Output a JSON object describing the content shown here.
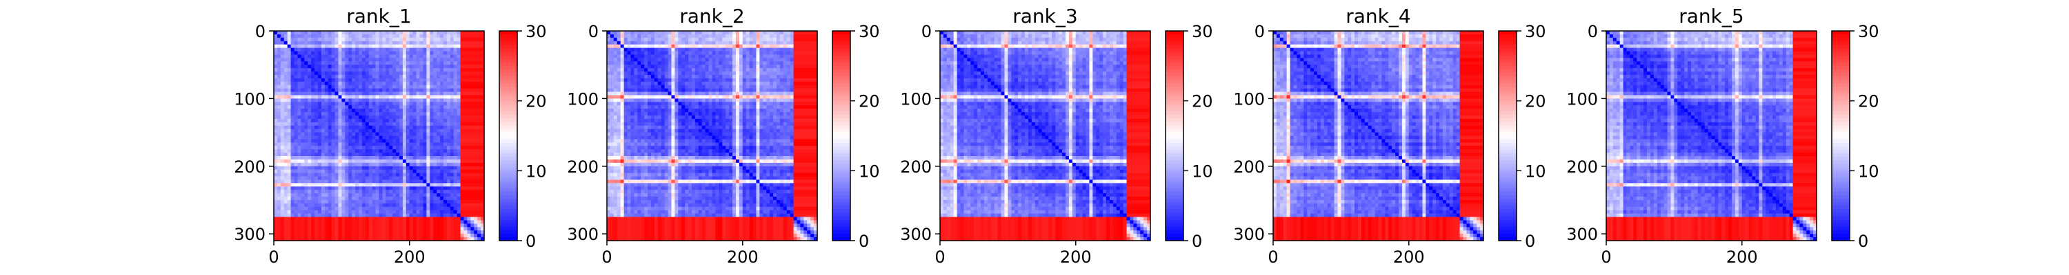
{
  "chart_data": [
    {
      "type": "heatmap",
      "title": "rank_1",
      "xlabel": "",
      "ylabel": "",
      "xlim": [
        0,
        310
      ],
      "ylim": [
        310,
        0
      ],
      "x_ticks": [
        "0",
        "200"
      ],
      "y_ticks": [
        "0",
        "100",
        "200",
        "300"
      ],
      "colorbar": {
        "min": 0,
        "max": 30,
        "ticks": [
          "0",
          "10",
          "20",
          "30"
        ],
        "colormap": "bwr"
      },
      "bright_bands": [
        22,
        95,
        188,
        225
      ],
      "band_intensity": 0.55,
      "seed": 11
    },
    {
      "type": "heatmap",
      "title": "rank_2",
      "xlabel": "",
      "ylabel": "",
      "xlim": [
        0,
        310
      ],
      "ylim": [
        310,
        0
      ],
      "x_ticks": [
        "0",
        "200"
      ],
      "y_ticks": [
        "0",
        "100",
        "200",
        "300"
      ],
      "colorbar": {
        "min": 0,
        "max": 30,
        "ticks": [
          "0",
          "10",
          "20",
          "30"
        ],
        "colormap": "bwr"
      },
      "bright_bands": [
        22,
        95,
        188,
        222
      ],
      "band_intensity": 0.8,
      "seed": 23
    },
    {
      "type": "heatmap",
      "title": "rank_3",
      "xlabel": "",
      "ylabel": "",
      "xlim": [
        0,
        310
      ],
      "ylim": [
        310,
        0
      ],
      "x_ticks": [
        "0",
        "200"
      ],
      "y_ticks": [
        "0",
        "100",
        "200",
        "300"
      ],
      "colorbar": {
        "min": 0,
        "max": 30,
        "ticks": [
          "0",
          "10",
          "20",
          "30"
        ],
        "colormap": "bwr"
      },
      "bright_bands": [
        22,
        95,
        188,
        222
      ],
      "band_intensity": 0.75,
      "seed": 37
    },
    {
      "type": "heatmap",
      "title": "rank_4",
      "xlabel": "",
      "ylabel": "",
      "xlim": [
        0,
        310
      ],
      "ylim": [
        310,
        0
      ],
      "x_ticks": [
        "0",
        "200"
      ],
      "y_ticks": [
        "0",
        "100",
        "200",
        "300"
      ],
      "colorbar": {
        "min": 0,
        "max": 30,
        "ticks": [
          "0",
          "10",
          "20",
          "30"
        ],
        "colormap": "bwr"
      },
      "bright_bands": [
        22,
        95,
        188,
        222
      ],
      "band_intensity": 0.85,
      "seed": 41
    },
    {
      "type": "heatmap",
      "title": "rank_5",
      "xlabel": "",
      "ylabel": "",
      "xlim": [
        0,
        310
      ],
      "ylim": [
        310,
        0
      ],
      "x_ticks": [
        "0",
        "200"
      ],
      "y_ticks": [
        "0",
        "100",
        "200",
        "300"
      ],
      "colorbar": {
        "min": 0,
        "max": 30,
        "ticks": [
          "0",
          "10",
          "20",
          "30"
        ],
        "colormap": "bwr"
      },
      "bright_bands": [
        22,
        95,
        188,
        225
      ],
      "band_intensity": 0.55,
      "seed": 53
    }
  ]
}
